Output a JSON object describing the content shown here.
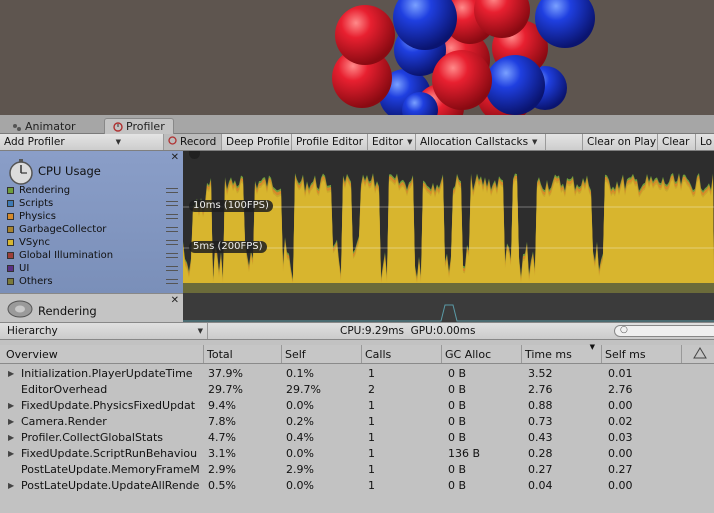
{
  "tabs": [
    {
      "label": "Animator",
      "icon": "animator-icon",
      "active": false
    },
    {
      "label": "Profiler",
      "icon": "profiler-icon",
      "active": true
    }
  ],
  "toolbar": {
    "add_profiler": "Add Profiler",
    "record": "Record",
    "deep_profile": "Deep Profile",
    "profile_editor": "Profile Editor",
    "editor": "Editor",
    "allocation_callstacks": "Allocation Callstacks",
    "clear_on_play": "Clear on Play",
    "clear": "Clear",
    "load": "Lo"
  },
  "cpu_module": {
    "title": "CPU Usage",
    "legend": [
      {
        "name": "Rendering",
        "color": "#6f9e3c"
      },
      {
        "name": "Scripts",
        "color": "#3e7ab5"
      },
      {
        "name": "Physics",
        "color": "#d68a2a"
      },
      {
        "name": "GarbageCollector",
        "color": "#a8842e"
      },
      {
        "name": "VSync",
        "color": "#d6b632"
      },
      {
        "name": "Global Illumination",
        "color": "#9c3f3a"
      },
      {
        "name": "UI",
        "color": "#5a2f86"
      },
      {
        "name": "Others",
        "color": "#7a7a3a"
      }
    ],
    "fps_labels": [
      "10ms (100FPS)",
      "5ms (200FPS)"
    ]
  },
  "rendering_module": {
    "title": "Rendering"
  },
  "hierarchy": {
    "view": "Hierarchy",
    "cpu": "CPU:9.29ms",
    "gpu": "GPU:0.00ms",
    "search_placeholder": ""
  },
  "table": {
    "columns": [
      "Overview",
      "Total",
      "Self",
      "Calls",
      "GC Alloc",
      "Time ms",
      "Self ms"
    ],
    "rows": [
      {
        "name": "Initialization.PlayerUpdateTime",
        "total": "37.9%",
        "self": "0.1%",
        "calls": "1",
        "gc": "0 B",
        "time": "3.52",
        "selfms": "0.01",
        "expandable": true
      },
      {
        "name": "EditorOverhead",
        "total": "29.7%",
        "self": "29.7%",
        "calls": "2",
        "gc": "0 B",
        "time": "2.76",
        "selfms": "2.76",
        "expandable": false
      },
      {
        "name": "FixedUpdate.PhysicsFixedUpdat",
        "total": "9.4%",
        "self": "0.0%",
        "calls": "1",
        "gc": "0 B",
        "time": "0.88",
        "selfms": "0.00",
        "expandable": true
      },
      {
        "name": "Camera.Render",
        "total": "7.8%",
        "self": "0.2%",
        "calls": "1",
        "gc": "0 B",
        "time": "0.73",
        "selfms": "0.02",
        "expandable": true
      },
      {
        "name": "Profiler.CollectGlobalStats",
        "total": "4.7%",
        "self": "0.4%",
        "calls": "1",
        "gc": "0 B",
        "time": "0.43",
        "selfms": "0.03",
        "expandable": true
      },
      {
        "name": "FixedUpdate.ScriptRunBehaviou",
        "total": "3.1%",
        "self": "0.0%",
        "calls": "1",
        "gc": "136 B",
        "time": "0.28",
        "selfms": "0.00",
        "expandable": true
      },
      {
        "name": "PostLateUpdate.MemoryFrameM",
        "total": "2.9%",
        "self": "2.9%",
        "calls": "1",
        "gc": "0 B",
        "time": "0.27",
        "selfms": "0.27",
        "expandable": false
      },
      {
        "name": "PostLateUpdate.UpdateAllRende",
        "total": "0.5%",
        "self": "0.0%",
        "calls": "1",
        "gc": "0 B",
        "time": "0.04",
        "selfms": "0.00",
        "expandable": true
      }
    ]
  }
}
